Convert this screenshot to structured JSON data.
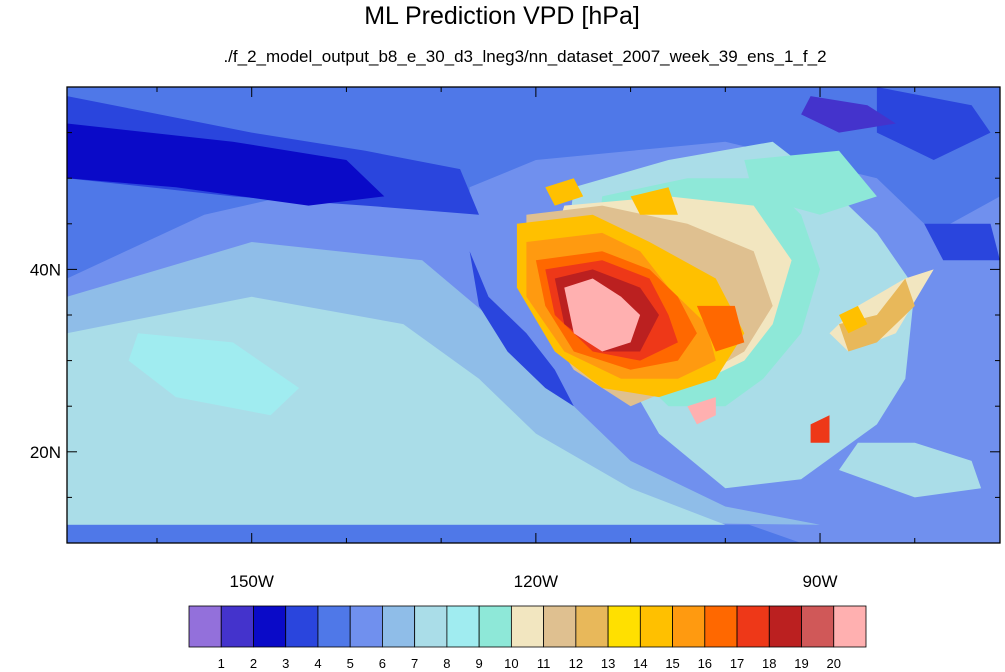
{
  "chart_data": {
    "type": "heatmap",
    "title": "ML Prediction VPD [hPa]",
    "subtitle": "./f_2_model_output_b8_e_30_d3_lneg3/nn_dataset_2007_week_39_ens_1_f_2",
    "x_axis": {
      "range": [
        -169.5,
        -71
      ],
      "ticks": [
        {
          "value": -150,
          "label": "150W"
        },
        {
          "value": -120,
          "label": "120W"
        },
        {
          "value": -90,
          "label": "90W"
        }
      ]
    },
    "y_axis": {
      "range": [
        10,
        60
      ],
      "ticks": [
        {
          "value": 20,
          "label": "20N"
        },
        {
          "value": 40,
          "label": "40N"
        }
      ]
    },
    "colorbar": {
      "placement": "bottom",
      "labels": [
        "1",
        "2",
        "3",
        "4",
        "5",
        "6",
        "7",
        "8",
        "9",
        "10",
        "11",
        "12",
        "13",
        "14",
        "15",
        "16",
        "17",
        "18",
        "19",
        "20"
      ],
      "colors": [
        "#9370db",
        "#4433cc",
        "#0a0ac8",
        "#2a45dd",
        "#4f78e8",
        "#7090ee",
        "#8fbde8",
        "#aadde8",
        "#a0ecf0",
        "#8ee8d8",
        "#f2e6c0",
        "#dfc090",
        "#e8b85a",
        "#ffe000",
        "#ffc000",
        "#ff9a10",
        "#ff6800",
        "#ee3818",
        "#bb2020",
        "#d05858",
        "#ffb0b0"
      ]
    },
    "regions": [
      {
        "level": 4,
        "points": [
          [
            -169.5,
            60
          ],
          [
            -71,
            60
          ],
          [
            -71,
            48
          ],
          [
            -78,
            44
          ],
          [
            -84,
            50
          ],
          [
            -100,
            54
          ],
          [
            -120,
            52
          ],
          [
            -127,
            49
          ],
          [
            -127,
            40
          ],
          [
            -120,
            30
          ],
          [
            -112,
            20
          ],
          [
            -103,
            14
          ],
          [
            -92,
            10
          ],
          [
            -169.5,
            10
          ]
        ]
      },
      {
        "level": 5,
        "points": [
          [
            -169.5,
            39
          ],
          [
            -155,
            46
          ],
          [
            -138,
            50
          ],
          [
            -126,
            47
          ],
          [
            -124,
            40
          ],
          [
            -120,
            31
          ],
          [
            -112,
            22
          ],
          [
            -104,
            16
          ],
          [
            -92,
            12
          ],
          [
            -169.5,
            12
          ]
        ]
      },
      {
        "level": 6,
        "points": [
          [
            -169.5,
            37
          ],
          [
            -150,
            43
          ],
          [
            -132,
            41
          ],
          [
            -124,
            34
          ],
          [
            -118,
            27
          ],
          [
            -110,
            19
          ],
          [
            -100,
            14
          ],
          [
            -90,
            12
          ],
          [
            -169.5,
            13
          ]
        ]
      },
      {
        "level": 7,
        "points": [
          [
            -169.5,
            33
          ],
          [
            -150,
            37
          ],
          [
            -134,
            34
          ],
          [
            -126,
            28
          ],
          [
            -120,
            22
          ],
          [
            -110,
            16
          ],
          [
            -100,
            12
          ],
          [
            -169.5,
            12
          ]
        ]
      },
      {
        "level": 7,
        "points": [
          [
            -116,
            49
          ],
          [
            -106,
            52
          ],
          [
            -95,
            54
          ],
          [
            -90,
            50
          ],
          [
            -84,
            44
          ],
          [
            -80,
            38
          ],
          [
            -81,
            28
          ],
          [
            -84,
            23
          ],
          [
            -92,
            17
          ],
          [
            -100,
            16
          ],
          [
            -107,
            22
          ],
          [
            -112,
            31
          ],
          [
            -117,
            40
          ]
        ]
      },
      {
        "level": 7,
        "points": [
          [
            -88,
            18
          ],
          [
            -80,
            15
          ],
          [
            -73,
            16
          ],
          [
            -74,
            19
          ],
          [
            -80,
            21
          ],
          [
            -86,
            21
          ]
        ]
      },
      {
        "level": 8,
        "points": [
          [
            -162,
            33
          ],
          [
            -152,
            32
          ],
          [
            -145,
            27
          ],
          [
            -148,
            24
          ],
          [
            -158,
            26
          ],
          [
            -163,
            30
          ]
        ]
      },
      {
        "level": 3,
        "points": [
          [
            -169.5,
            59
          ],
          [
            -150,
            55
          ],
          [
            -138,
            53
          ],
          [
            -128,
            51
          ],
          [
            -126,
            46
          ],
          [
            -138,
            47
          ],
          [
            -152,
            48
          ],
          [
            -169.5,
            50
          ]
        ]
      },
      {
        "level": 3,
        "points": [
          [
            -127,
            42
          ],
          [
            -125,
            37
          ],
          [
            -121,
            33
          ],
          [
            -118,
            29
          ],
          [
            -116,
            25
          ],
          [
            -119,
            27
          ],
          [
            -123,
            31
          ],
          [
            -126,
            36
          ]
        ]
      },
      {
        "level": 3,
        "points": [
          [
            -84,
            60
          ],
          [
            -74,
            58
          ],
          [
            -72,
            55
          ],
          [
            -78,
            52
          ],
          [
            -84,
            55
          ]
        ]
      },
      {
        "level": 3,
        "points": [
          [
            -79,
            45
          ],
          [
            -72,
            45
          ],
          [
            -71,
            41
          ],
          [
            -77,
            41
          ]
        ]
      },
      {
        "level": 2,
        "points": [
          [
            -169.5,
            56
          ],
          [
            -152,
            54
          ],
          [
            -140,
            52
          ],
          [
            -136,
            48
          ],
          [
            -144,
            47
          ],
          [
            -158,
            49
          ],
          [
            -169.5,
            50
          ]
        ]
      },
      {
        "level": 1,
        "points": [
          [
            -91,
            59
          ],
          [
            -85,
            58
          ],
          [
            -82,
            56
          ],
          [
            -88,
            55
          ],
          [
            -92,
            57
          ]
        ]
      },
      {
        "level": 9,
        "points": [
          [
            -113,
            48
          ],
          [
            -104,
            50
          ],
          [
            -96,
            50
          ],
          [
            -92,
            46
          ],
          [
            -90,
            40
          ],
          [
            -92,
            33
          ],
          [
            -96,
            28
          ],
          [
            -100,
            25
          ],
          [
            -106,
            25
          ],
          [
            -111,
            30
          ],
          [
            -114,
            38
          ]
        ]
      },
      {
        "level": 9,
        "points": [
          [
            -98,
            52
          ],
          [
            -88,
            53
          ],
          [
            -84,
            48
          ],
          [
            -90,
            46
          ],
          [
            -97,
            48
          ]
        ]
      },
      {
        "level": 10,
        "points": [
          [
            -117,
            47
          ],
          [
            -106,
            48
          ],
          [
            -97,
            47
          ],
          [
            -93,
            41
          ],
          [
            -95,
            34
          ],
          [
            -98,
            30
          ],
          [
            -104,
            27
          ],
          [
            -110,
            27
          ],
          [
            -116,
            31
          ],
          [
            -120,
            37
          ]
        ]
      },
      {
        "level": 10,
        "points": [
          [
            -86,
            36
          ],
          [
            -81,
            39
          ],
          [
            -78,
            40
          ],
          [
            -82,
            33
          ],
          [
            -87,
            31
          ],
          [
            -89,
            33
          ]
        ]
      },
      {
        "level": 11,
        "points": [
          [
            -121,
            46
          ],
          [
            -113,
            47
          ],
          [
            -104,
            45
          ],
          [
            -97,
            42
          ],
          [
            -95,
            36
          ],
          [
            -98,
            31
          ],
          [
            -103,
            28
          ],
          [
            -110,
            25
          ],
          [
            -116,
            29
          ],
          [
            -121,
            37
          ]
        ]
      },
      {
        "level": 12,
        "points": [
          [
            -88,
            34
          ],
          [
            -84,
            35
          ],
          [
            -81,
            39
          ],
          [
            -80,
            36
          ],
          [
            -84,
            32
          ],
          [
            -87,
            31
          ]
        ]
      },
      {
        "level": 14,
        "points": [
          [
            -122,
            45
          ],
          [
            -114,
            46
          ],
          [
            -108,
            43
          ],
          [
            -101,
            39
          ],
          [
            -98,
            33
          ],
          [
            -101,
            28
          ],
          [
            -107,
            26
          ],
          [
            -113,
            27
          ],
          [
            -118,
            31
          ],
          [
            -122,
            38
          ]
        ]
      },
      {
        "level": 14,
        "points": [
          [
            -119,
            49
          ],
          [
            -116,
            50
          ],
          [
            -115,
            48
          ],
          [
            -118,
            47
          ]
        ]
      },
      {
        "level": 14,
        "points": [
          [
            -110,
            48
          ],
          [
            -106,
            49
          ],
          [
            -105,
            46
          ],
          [
            -109,
            46
          ]
        ]
      },
      {
        "level": 14,
        "points": [
          [
            -88,
            35
          ],
          [
            -86,
            36
          ],
          [
            -85,
            34
          ],
          [
            -87,
            33
          ]
        ]
      },
      {
        "level": 15,
        "points": [
          [
            -121,
            43
          ],
          [
            -113,
            44
          ],
          [
            -109,
            42
          ],
          [
            -106,
            38
          ],
          [
            -102,
            34
          ],
          [
            -101,
            30
          ],
          [
            -105,
            28
          ],
          [
            -111,
            28
          ],
          [
            -117,
            31
          ],
          [
            -121,
            37
          ]
        ]
      },
      {
        "level": 16,
        "points": [
          [
            -120,
            41
          ],
          [
            -113,
            42
          ],
          [
            -108,
            40
          ],
          [
            -105,
            37
          ],
          [
            -103,
            33
          ],
          [
            -105,
            30
          ],
          [
            -110,
            29
          ],
          [
            -116,
            31
          ],
          [
            -119,
            36
          ]
        ]
      },
      {
        "level": 16,
        "points": [
          [
            -103,
            36
          ],
          [
            -99,
            36
          ],
          [
            -98,
            32
          ],
          [
            -101,
            31
          ]
        ]
      },
      {
        "level": 17,
        "points": [
          [
            -119,
            40
          ],
          [
            -113,
            41
          ],
          [
            -108,
            39
          ],
          [
            -106,
            35
          ],
          [
            -105,
            32
          ],
          [
            -109,
            30
          ],
          [
            -114,
            31
          ],
          [
            -118,
            35
          ]
        ]
      },
      {
        "level": 17,
        "points": [
          [
            -91,
            23
          ],
          [
            -89,
            24
          ],
          [
            -89,
            21
          ],
          [
            -91,
            21
          ]
        ]
      },
      {
        "level": 18,
        "points": [
          [
            -118,
            39
          ],
          [
            -114,
            40
          ],
          [
            -109,
            38
          ],
          [
            -107,
            35
          ],
          [
            -109,
            31
          ],
          [
            -113,
            31
          ],
          [
            -117,
            34
          ]
        ]
      },
      {
        "level": 20,
        "points": [
          [
            -117,
            38
          ],
          [
            -114,
            39
          ],
          [
            -111,
            37
          ],
          [
            -109,
            35
          ],
          [
            -110,
            32
          ],
          [
            -113,
            31
          ],
          [
            -116,
            33
          ]
        ]
      },
      {
        "level": 20,
        "points": [
          [
            -104,
            25
          ],
          [
            -101,
            26
          ],
          [
            -101,
            24
          ],
          [
            -103,
            23
          ]
        ]
      }
    ]
  }
}
